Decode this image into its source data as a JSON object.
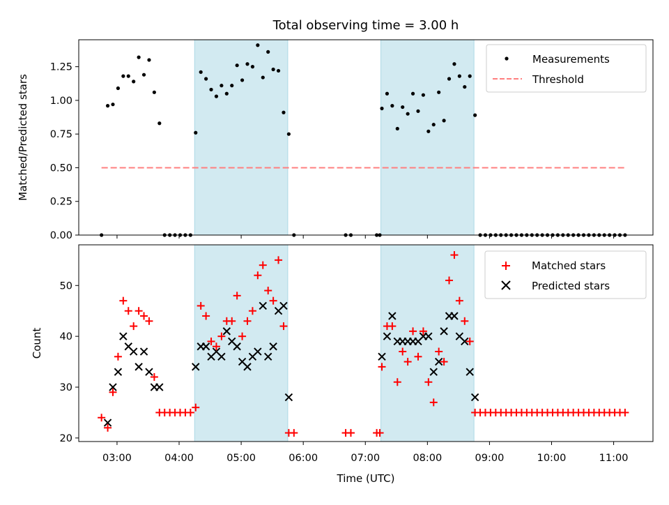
{
  "colors": {
    "measurement": "#000000",
    "threshold": "#ff7f7f",
    "matched": "#ff0000",
    "predicted": "#000000",
    "shade": "#add8e6"
  },
  "chart_data": [
    {
      "type": "scatter",
      "title": "Total observing time = 3.00 h",
      "xlabel": "",
      "ylabel": "Matched/Predicted stars",
      "xlim": [
        "02:23",
        "11:38"
      ],
      "ylim": [
        0,
        1.45
      ],
      "yticks": [
        "0.00",
        "0.25",
        "0.50",
        "0.75",
        "1.00",
        "1.25"
      ],
      "grid": false,
      "legend_position": "top-right",
      "shaded_regions": [
        [
          "04:15",
          "05:45"
        ],
        [
          "07:15",
          "08:45"
        ]
      ],
      "series": [
        {
          "name": "Measurements",
          "marker": "dot",
          "x": [
            "02:45",
            "02:51",
            "02:56",
            "03:01",
            "03:06",
            "03:11",
            "03:16",
            "03:21",
            "03:26",
            "03:31",
            "03:36",
            "03:41",
            "03:46",
            "03:51",
            "03:56",
            "04:01",
            "04:06",
            "04:11",
            "04:16",
            "04:21",
            "04:26",
            "04:31",
            "04:36",
            "04:41",
            "04:46",
            "04:51",
            "04:56",
            "05:01",
            "05:06",
            "05:11",
            "05:16",
            "05:21",
            "05:26",
            "05:31",
            "05:36",
            "05:41",
            "05:46",
            "05:51",
            "06:41",
            "06:46",
            "07:11",
            "07:14",
            "07:16",
            "07:21",
            "07:26",
            "07:31",
            "07:36",
            "07:41",
            "07:46",
            "07:51",
            "07:56",
            "08:01",
            "08:06",
            "08:11",
            "08:16",
            "08:21",
            "08:26",
            "08:31",
            "08:36",
            "08:41",
            "08:46",
            "08:51",
            "08:56",
            "09:01",
            "09:06",
            "09:11",
            "09:16",
            "09:21",
            "09:26",
            "09:31",
            "09:36",
            "09:41",
            "09:46",
            "09:51",
            "09:56",
            "10:01",
            "10:06",
            "10:11",
            "10:16",
            "10:21",
            "10:26",
            "10:31",
            "10:36",
            "10:41",
            "10:46",
            "10:51",
            "10:56",
            "11:01",
            "11:06",
            "11:11"
          ],
          "y": [
            0,
            0.96,
            0.97,
            1.09,
            1.18,
            1.18,
            1.14,
            1.32,
            1.19,
            1.3,
            1.06,
            0.83,
            0,
            0,
            0,
            0,
            0,
            0,
            0.76,
            1.21,
            1.16,
            1.08,
            1.03,
            1.11,
            1.05,
            1.11,
            1.26,
            1.15,
            1.27,
            1.25,
            1.41,
            1.17,
            1.36,
            1.23,
            1.22,
            0.91,
            0.75,
            0,
            0,
            0,
            0,
            0,
            0.94,
            1.05,
            0.96,
            0.79,
            0.95,
            0.9,
            1.05,
            0.92,
            1.04,
            0.77,
            0.82,
            1.06,
            0.85,
            1.16,
            1.27,
            1.18,
            1.1,
            1.18,
            0.89,
            0,
            0,
            0,
            0,
            0,
            0,
            0,
            0,
            0,
            0,
            0,
            0,
            0,
            0,
            0,
            0,
            0,
            0,
            0,
            0,
            0,
            0,
            0,
            0,
            0,
            0,
            0,
            0,
            0
          ]
        },
        {
          "name": "Threshold",
          "line": "dashed",
          "x": [
            "02:45",
            "11:11"
          ],
          "y": [
            0.5,
            0.5
          ]
        }
      ]
    },
    {
      "type": "scatter",
      "title": "",
      "xlabel": "Time (UTC)",
      "ylabel": "Count",
      "xlim": [
        "02:23",
        "11:38"
      ],
      "ylim": [
        19.3,
        58
      ],
      "yticks": [
        "20",
        "30",
        "40",
        "50"
      ],
      "xticks": [
        "03:00",
        "04:00",
        "05:00",
        "06:00",
        "07:00",
        "08:00",
        "09:00",
        "10:00",
        "11:00"
      ],
      "grid": false,
      "legend_position": "top-right",
      "shaded_regions": [
        [
          "04:15",
          "05:45"
        ],
        [
          "07:15",
          "08:45"
        ]
      ],
      "series": [
        {
          "name": "Matched stars",
          "marker": "plus",
          "x": [
            "02:45",
            "02:51",
            "02:56",
            "03:01",
            "03:06",
            "03:11",
            "03:16",
            "03:21",
            "03:26",
            "03:31",
            "03:36",
            "03:41",
            "03:46",
            "03:51",
            "03:56",
            "04:01",
            "04:06",
            "04:11",
            "04:16",
            "04:21",
            "04:26",
            "04:31",
            "04:36",
            "04:41",
            "04:46",
            "04:51",
            "04:56",
            "05:01",
            "05:06",
            "05:11",
            "05:16",
            "05:21",
            "05:26",
            "05:31",
            "05:36",
            "05:41",
            "05:46",
            "05:51",
            "06:41",
            "06:46",
            "07:11",
            "07:14",
            "07:16",
            "07:21",
            "07:26",
            "07:31",
            "07:36",
            "07:41",
            "07:46",
            "07:51",
            "07:56",
            "08:01",
            "08:06",
            "08:11",
            "08:16",
            "08:21",
            "08:26",
            "08:31",
            "08:36",
            "08:41",
            "08:46",
            "08:51",
            "08:56",
            "09:01",
            "09:06",
            "09:11",
            "09:16",
            "09:21",
            "09:26",
            "09:31",
            "09:36",
            "09:41",
            "09:46",
            "09:51",
            "09:56",
            "10:01",
            "10:06",
            "10:11",
            "10:16",
            "10:21",
            "10:26",
            "10:31",
            "10:36",
            "10:41",
            "10:46",
            "10:51",
            "10:56",
            "11:01",
            "11:06",
            "11:11"
          ],
          "y": [
            24,
            22,
            29,
            36,
            47,
            45,
            42,
            45,
            44,
            43,
            32,
            25,
            25,
            25,
            25,
            25,
            25,
            25,
            26,
            46,
            44,
            39,
            38,
            40,
            43,
            43,
            48,
            40,
            43,
            45,
            52,
            54,
            49,
            47,
            55,
            42,
            21,
            21,
            21,
            21,
            21,
            21,
            34,
            42,
            42,
            31,
            37,
            35,
            41,
            36,
            41,
            31,
            27,
            37,
            35,
            51,
            56,
            47,
            43,
            39,
            25,
            25,
            25,
            25,
            25,
            25,
            25,
            25,
            25,
            25,
            25,
            25,
            25,
            25,
            25,
            25,
            25,
            25,
            25,
            25,
            25,
            25,
            25,
            25,
            25,
            25,
            25,
            25,
            25,
            25
          ]
        },
        {
          "name": "Predicted stars",
          "marker": "x",
          "x": [
            "02:51",
            "02:56",
            "03:01",
            "03:06",
            "03:11",
            "03:16",
            "03:21",
            "03:26",
            "03:31",
            "03:36",
            "03:41",
            "04:16",
            "04:21",
            "04:26",
            "04:31",
            "04:36",
            "04:41",
            "04:46",
            "04:51",
            "04:56",
            "05:01",
            "05:06",
            "05:11",
            "05:16",
            "05:21",
            "05:26",
            "05:31",
            "05:36",
            "05:41",
            "05:46",
            "07:16",
            "07:21",
            "07:26",
            "07:31",
            "07:36",
            "07:41",
            "07:46",
            "07:51",
            "07:56",
            "08:01",
            "08:06",
            "08:11",
            "08:16",
            "08:21",
            "08:26",
            "08:31",
            "08:36",
            "08:41",
            "08:46"
          ],
          "y": [
            23,
            30,
            33,
            40,
            38,
            37,
            34,
            37,
            33,
            30,
            30,
            34,
            38,
            38,
            36,
            37,
            36,
            41,
            39,
            38,
            35,
            34,
            36,
            37,
            46,
            36,
            38,
            45,
            46,
            28,
            36,
            40,
            44,
            39,
            39,
            39,
            39,
            39,
            40,
            40,
            33,
            35,
            41,
            44,
            44,
            40,
            39,
            33,
            28
          ]
        }
      ]
    }
  ]
}
